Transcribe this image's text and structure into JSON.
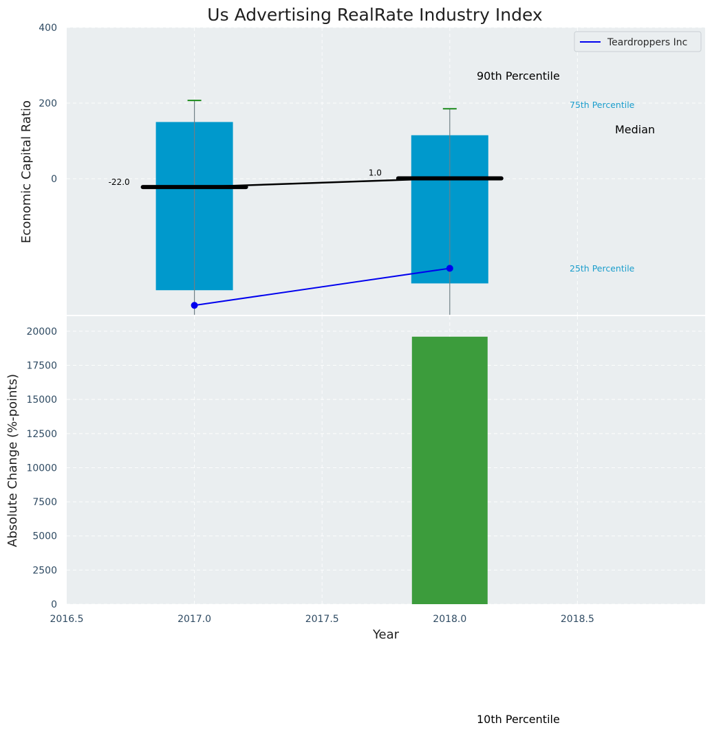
{
  "chart_data": {
    "title": "Us Advertising RealRate Industry Index",
    "xlabel": "Year",
    "x_ticks": [
      "2016.5",
      "2017.0",
      "2017.5",
      "2018.0",
      "2018.5"
    ],
    "x_tick_values": [
      2016.5,
      2017.0,
      2017.5,
      2018.0,
      2018.5
    ],
    "xlim": [
      2016.5,
      2019.0
    ],
    "top_panel": {
      "type": "bar",
      "ylabel": "Economic Capital Ratio",
      "ylim": [
        -360,
        400
      ],
      "y_ticks": [
        "0",
        "200",
        "400"
      ],
      "y_tick_values": [
        0,
        200,
        400
      ],
      "bar_color": "#0099cc",
      "percentile_bars": [
        {
          "x": 2017.0,
          "p25": -295,
          "p75": 150,
          "p10": -360,
          "p90": 207
        },
        {
          "x": 2018.0,
          "p25": -277,
          "p75": 115,
          "p10": -360,
          "p90": 185
        }
      ],
      "median": {
        "name": "Median",
        "x": [
          2017.0,
          2018.0
        ],
        "values": [
          -22.0,
          1.0
        ],
        "labels": [
          "-22.0",
          "1.0"
        ],
        "color": "#000000"
      },
      "company": {
        "name": "Teardroppers Inc",
        "x": [
          2017.0,
          2018.0
        ],
        "values": [
          -335,
          -237
        ],
        "color": "#0000ee"
      },
      "legend": {
        "entries": [
          "Teardroppers Inc"
        ],
        "placement": "top-right"
      },
      "annotations": {
        "p90": "90th Percentile",
        "p75": "75th Percentile",
        "median": "Median",
        "p25": "25th Percentile",
        "p10": "10th Percentile"
      }
    },
    "bottom_panel": {
      "type": "bar",
      "ylabel": "Absolute Change (%-points)",
      "ylim": [
        0,
        20600
      ],
      "y_ticks": [
        "0",
        "2500",
        "5000",
        "7500",
        "10000",
        "12500",
        "15000",
        "17500",
        "20000"
      ],
      "y_tick_values": [
        0,
        2500,
        5000,
        7500,
        10000,
        12500,
        15000,
        17500,
        20000
      ],
      "bar_color": "#3c9c3c",
      "bars": [
        {
          "x": 2018.0,
          "value": 19600
        }
      ]
    }
  }
}
